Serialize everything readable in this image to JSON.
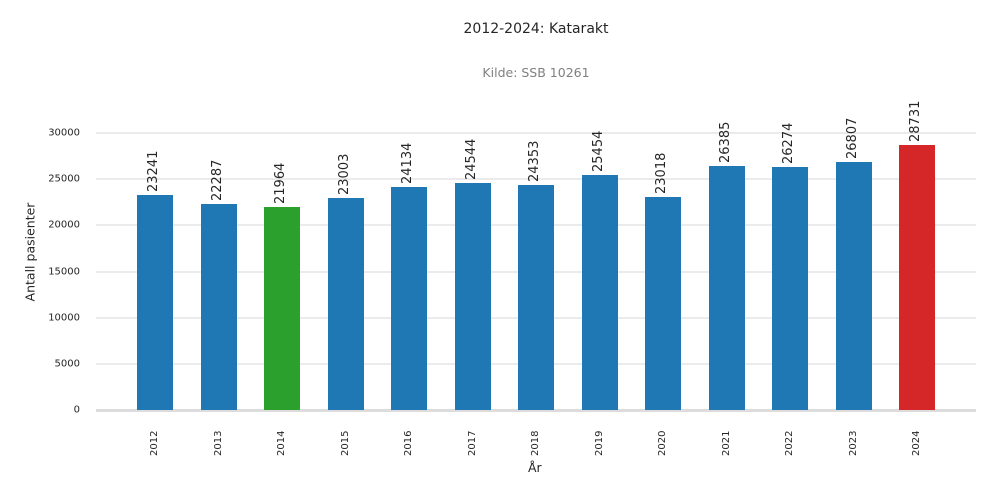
{
  "chart_data": {
    "type": "bar",
    "title": "2012-2024: Katarakt",
    "subtitle": "Kilde: SSB 10261",
    "xlabel": "År",
    "ylabel": "Antall pasienter",
    "categories": [
      "2012",
      "2013",
      "2014",
      "2015",
      "2016",
      "2017",
      "2018",
      "2019",
      "2020",
      "2021",
      "2022",
      "2023",
      "2024"
    ],
    "values": [
      23241,
      22287,
      21964,
      23003,
      24134,
      24544,
      24353,
      25454,
      23018,
      26385,
      26274,
      26807,
      28731
    ],
    "bar_colors": [
      "#1f77b4",
      "#1f77b4",
      "#2ca02c",
      "#1f77b4",
      "#1f77b4",
      "#1f77b4",
      "#1f77b4",
      "#1f77b4",
      "#1f77b4",
      "#1f77b4",
      "#1f77b4",
      "#1f77b4",
      "#d62728"
    ],
    "highlight": {
      "min_year": "2014",
      "min_color": "#2ca02c",
      "max_year": "2024",
      "max_color": "#d62728",
      "default_color": "#1f77b4"
    },
    "yticks": [
      0,
      5000,
      10000,
      15000,
      20000,
      25000,
      30000
    ],
    "ylim": [
      0,
      30000
    ],
    "grid": true,
    "legend": null,
    "data_labels": true
  }
}
